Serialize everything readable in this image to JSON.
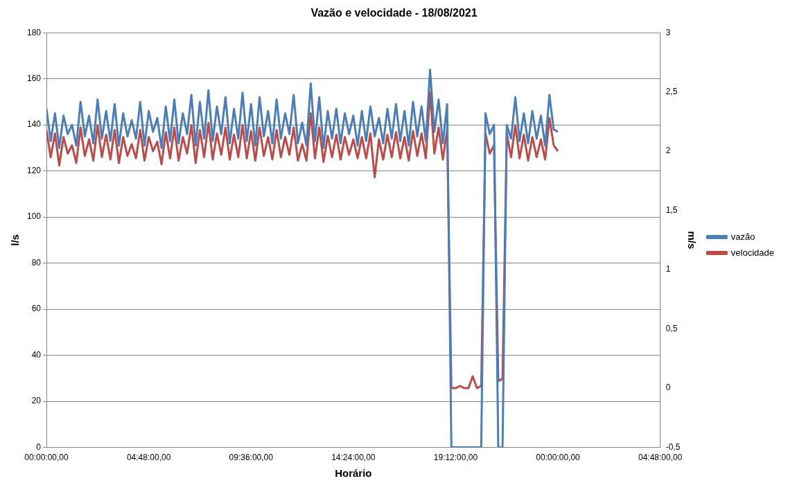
{
  "chart_data": {
    "type": "line",
    "title": "Vazão e velocidade - 18/08/2021",
    "xlabel": "Horário",
    "ylabel": "l/s",
    "y2label": "m/s",
    "x": [
      "2021-08-18T00:00",
      "2021-08-18T00:12",
      "2021-08-18T00:24",
      "2021-08-18T00:36",
      "2021-08-18T00:48",
      "2021-08-18T01:00",
      "2021-08-18T01:12",
      "2021-08-18T01:24",
      "2021-08-18T01:36",
      "2021-08-18T01:48",
      "2021-08-18T02:00",
      "2021-08-18T02:12",
      "2021-08-18T02:24",
      "2021-08-18T02:36",
      "2021-08-18T02:48",
      "2021-08-18T03:00",
      "2021-08-18T03:12",
      "2021-08-18T03:24",
      "2021-08-18T03:36",
      "2021-08-18T03:48",
      "2021-08-18T04:00",
      "2021-08-18T04:12",
      "2021-08-18T04:24",
      "2021-08-18T04:36",
      "2021-08-18T04:48",
      "2021-08-18T05:00",
      "2021-08-18T05:12",
      "2021-08-18T05:24",
      "2021-08-18T05:36",
      "2021-08-18T05:48",
      "2021-08-18T06:00",
      "2021-08-18T06:12",
      "2021-08-18T06:24",
      "2021-08-18T06:36",
      "2021-08-18T06:48",
      "2021-08-18T07:00",
      "2021-08-18T07:12",
      "2021-08-18T07:24",
      "2021-08-18T07:36",
      "2021-08-18T07:48",
      "2021-08-18T08:00",
      "2021-08-18T08:12",
      "2021-08-18T08:24",
      "2021-08-18T08:36",
      "2021-08-18T08:48",
      "2021-08-18T09:00",
      "2021-08-18T09:12",
      "2021-08-18T09:24",
      "2021-08-18T09:36",
      "2021-08-18T09:48",
      "2021-08-18T10:00",
      "2021-08-18T10:12",
      "2021-08-18T10:24",
      "2021-08-18T10:36",
      "2021-08-18T10:48",
      "2021-08-18T11:00",
      "2021-08-18T11:12",
      "2021-08-18T11:24",
      "2021-08-18T11:36",
      "2021-08-18T11:48",
      "2021-08-18T12:00",
      "2021-08-18T12:12",
      "2021-08-18T12:24",
      "2021-08-18T12:36",
      "2021-08-18T12:48",
      "2021-08-18T13:00",
      "2021-08-18T13:12",
      "2021-08-18T13:24",
      "2021-08-18T13:36",
      "2021-08-18T13:48",
      "2021-08-18T14:00",
      "2021-08-18T14:12",
      "2021-08-18T14:24",
      "2021-08-18T14:36",
      "2021-08-18T14:48",
      "2021-08-18T15:00",
      "2021-08-18T15:12",
      "2021-08-18T15:24",
      "2021-08-18T15:36",
      "2021-08-18T15:48",
      "2021-08-18T16:00",
      "2021-08-18T16:12",
      "2021-08-18T16:24",
      "2021-08-18T16:36",
      "2021-08-18T16:48",
      "2021-08-18T17:00",
      "2021-08-18T17:12",
      "2021-08-18T17:24",
      "2021-08-18T17:36",
      "2021-08-18T17:48",
      "2021-08-18T18:00",
      "2021-08-18T18:12",
      "2021-08-18T18:24",
      "2021-08-18T18:36",
      "2021-08-18T18:48",
      "2021-08-18T19:00",
      "2021-08-18T19:12",
      "2021-08-18T19:24",
      "2021-08-18T19:36",
      "2021-08-18T19:48",
      "2021-08-18T20:00",
      "2021-08-18T20:12",
      "2021-08-18T20:24",
      "2021-08-18T20:36",
      "2021-08-18T20:48",
      "2021-08-18T21:00",
      "2021-08-18T21:12",
      "2021-08-18T21:24",
      "2021-08-18T21:36",
      "2021-08-18T21:48",
      "2021-08-18T22:00",
      "2021-08-18T22:12",
      "2021-08-18T22:24",
      "2021-08-18T22:36",
      "2021-08-18T22:48",
      "2021-08-18T23:00",
      "2021-08-18T23:12",
      "2021-08-18T23:24",
      "2021-08-18T23:36",
      "2021-08-18T23:48",
      "2021-08-19T00:00"
    ],
    "series": [
      {
        "name": "vazão",
        "color": "#4a7ebb",
        "values": [
          147,
          133,
          145,
          130,
          144,
          136,
          140,
          131,
          150,
          135,
          144,
          132,
          151,
          134,
          146,
          133,
          149,
          131,
          145,
          135,
          142,
          134,
          150,
          131,
          146,
          137,
          143,
          130,
          148,
          133,
          151,
          132,
          145,
          136,
          153,
          131,
          150,
          134,
          155,
          133,
          148,
          136,
          152,
          132,
          147,
          134,
          154,
          133,
          149,
          131,
          152,
          135,
          146,
          132,
          151,
          134,
          145,
          136,
          153,
          132,
          141,
          131,
          158,
          133,
          152,
          130,
          146,
          134,
          147,
          132,
          145,
          136,
          144,
          131,
          146,
          133,
          148,
          135,
          143,
          132,
          147,
          134,
          149,
          133,
          146,
          131,
          150,
          135,
          148,
          133,
          164,
          137,
          151,
          132,
          149,
          0,
          0,
          0,
          0,
          0,
          0,
          0,
          0,
          145,
          136,
          140,
          0,
          0,
          140,
          134,
          152,
          133,
          145,
          132,
          146,
          134,
          144,
          131,
          153,
          138,
          137
        ]
      },
      {
        "name": "velocidade",
        "color": "#be4b48",
        "axis": "y2",
        "values": [
          2.18,
          1.95,
          2.15,
          1.88,
          2.12,
          1.98,
          2.05,
          1.9,
          2.2,
          1.96,
          2.1,
          1.92,
          2.22,
          1.95,
          2.14,
          1.93,
          2.18,
          1.9,
          2.12,
          1.96,
          2.06,
          1.94,
          2.18,
          1.92,
          2.12,
          2,
          2.08,
          1.89,
          2.16,
          1.94,
          2.2,
          1.92,
          2.12,
          1.98,
          2.22,
          1.9,
          2.18,
          1.95,
          2.24,
          1.93,
          2.15,
          1.97,
          2.2,
          1.93,
          2.14,
          1.95,
          2.22,
          1.94,
          2.17,
          1.92,
          2.2,
          1.96,
          2.12,
          1.93,
          2.18,
          1.95,
          2.12,
          1.97,
          2.2,
          1.92,
          2.06,
          1.92,
          2.32,
          1.94,
          2.2,
          1.91,
          2.13,
          1.95,
          2.14,
          1.93,
          2.12,
          1.97,
          2.1,
          1.94,
          2.12,
          1.94,
          2.15,
          1.78,
          2.1,
          1.93,
          2.14,
          1.95,
          2.16,
          1.94,
          2.12,
          1.92,
          2.17,
          1.96,
          2.15,
          1.94,
          2.5,
          1.98,
          2.2,
          1.93,
          2.18,
          0,
          0,
          0.02,
          0,
          0,
          0.1,
          0,
          0.02,
          2.15,
          1.98,
          2.05,
          0.06,
          0.08,
          2.15,
          1.95,
          2.22,
          1.94,
          2.14,
          1.92,
          2.12,
          1.95,
          2.1,
          1.93,
          2.28,
          2.05,
          2
        ]
      }
    ],
    "xlim": [
      "2021-08-18T00:00",
      "2021-08-19T04:48"
    ],
    "xticks": [
      {
        "value": "2021-08-18T00:00",
        "label": "00:00:00,00"
      },
      {
        "value": "2021-08-18T04:48",
        "label": "04:48:00,00"
      },
      {
        "value": "2021-08-18T09:36",
        "label": "09:36:00,00"
      },
      {
        "value": "2021-08-18T14:24",
        "label": "14:24:00,00"
      },
      {
        "value": "2021-08-18T19:12",
        "label": "19:12:00,00"
      },
      {
        "value": "2021-08-19T00:00",
        "label": "00:00:00,00"
      },
      {
        "value": "2021-08-19T04:48",
        "label": "04:48:00,00"
      }
    ],
    "ylim": [
      0,
      180
    ],
    "yticks": [
      0,
      20,
      40,
      60,
      80,
      100,
      120,
      140,
      160,
      180
    ],
    "y2lim": [
      -0.5,
      3
    ],
    "y2ticks": [
      {
        "value": -0.5,
        "label": "-0,5"
      },
      0,
      {
        "value": 0.5,
        "label": "0,5"
      },
      1,
      {
        "value": 1.5,
        "label": "1,5"
      },
      2,
      {
        "value": 2.5,
        "label": "2,5"
      },
      3
    ],
    "grid": "y",
    "legend": "right",
    "marker": "none",
    "line_style": "solid"
  }
}
